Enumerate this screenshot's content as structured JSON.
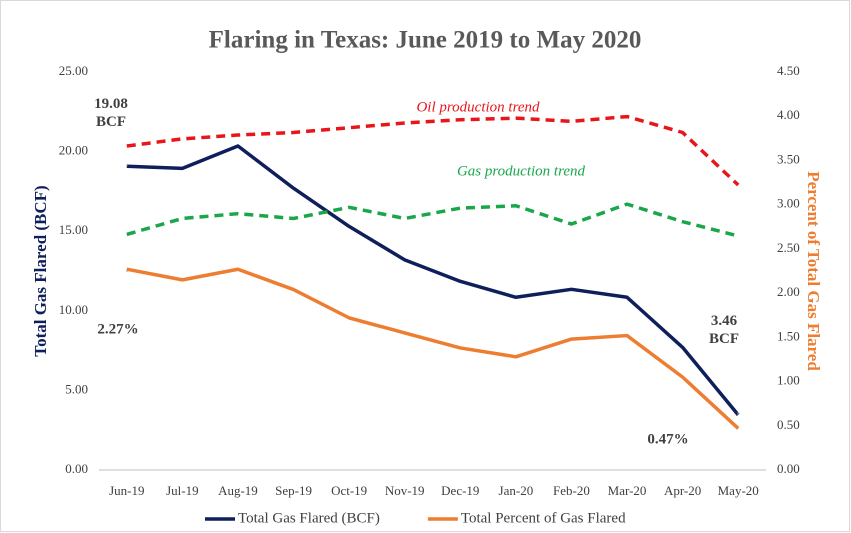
{
  "chart_data": {
    "type": "line",
    "title": "Flaring in Texas: June 2019 to May 2020",
    "y_label": "Total Gas Flared (BCF)",
    "y2_label": "Percent of Total Gas Flared",
    "categories": [
      "Jun-19",
      "Jul-19",
      "Aug-19",
      "Sep-19",
      "Oct-19",
      "Nov-19",
      "Dec-19",
      "Jan-20",
      "Feb-20",
      "Mar-20",
      "Apr-20",
      "May-20"
    ],
    "ylim": [
      0,
      25
    ],
    "yticks": [
      {
        "value": 0,
        "label": "0.00"
      },
      {
        "value": 5,
        "label": "5.00"
      },
      {
        "value": 10,
        "label": "10.00"
      },
      {
        "value": 15,
        "label": "15.00"
      },
      {
        "value": 20,
        "label": "20.00"
      },
      {
        "value": 25,
        "label": "25.00"
      }
    ],
    "y2lim": [
      0,
      4.5
    ],
    "y2ticks": [
      {
        "value": 0,
        "label": "0.00"
      },
      {
        "value": 0.5,
        "label": "0.50"
      },
      {
        "value": 1,
        "label": "1.00"
      },
      {
        "value": 1.5,
        "label": "1.50"
      },
      {
        "value": 2,
        "label": "2.00"
      },
      {
        "value": 2.5,
        "label": "2.50"
      },
      {
        "value": 3,
        "label": "3.00"
      },
      {
        "value": 3.5,
        "label": "3.50"
      },
      {
        "value": 4,
        "label": "4.00"
      },
      {
        "value": 4.5,
        "label": "4.50"
      }
    ],
    "grid": false,
    "series": [
      {
        "name": "Total Gas Flared (BCF)",
        "color": "#0e1f5b",
        "axis": "y",
        "dashed": false,
        "in_legend": true,
        "values": [
          19.08,
          18.95,
          20.35,
          17.7,
          15.3,
          13.2,
          11.85,
          10.85,
          11.35,
          10.85,
          7.7,
          3.46
        ],
        "value_labels": [
          "19.08 BCF",
          null,
          null,
          null,
          null,
          null,
          null,
          null,
          null,
          null,
          null,
          "3.46 BCF"
        ]
      },
      {
        "name": "Total Percent of Gas Flared",
        "color": "#ed7d31",
        "axis": "y2",
        "dashed": false,
        "in_legend": true,
        "values": [
          2.27,
          2.15,
          2.27,
          2.04,
          1.72,
          1.55,
          1.38,
          1.28,
          1.48,
          1.52,
          1.05,
          0.47
        ],
        "value_labels": [
          "2.27%",
          null,
          null,
          null,
          null,
          null,
          null,
          null,
          null,
          null,
          null,
          "0.47%"
        ]
      },
      {
        "name": "Oil production trend",
        "color": "#e8161b",
        "axis": "y",
        "dashed": true,
        "in_legend": false,
        "values": [
          20.35,
          20.8,
          21.04,
          21.2,
          21.5,
          21.8,
          22.0,
          22.1,
          21.9,
          22.2,
          21.2,
          17.9
        ]
      },
      {
        "name": "Gas production trend",
        "color": "#1aa64a",
        "axis": "y",
        "dashed": true,
        "in_legend": false,
        "values": [
          14.8,
          15.8,
          16.1,
          15.8,
          16.5,
          15.8,
          16.45,
          16.6,
          15.45,
          16.7,
          15.6,
          14.7
        ]
      }
    ]
  }
}
